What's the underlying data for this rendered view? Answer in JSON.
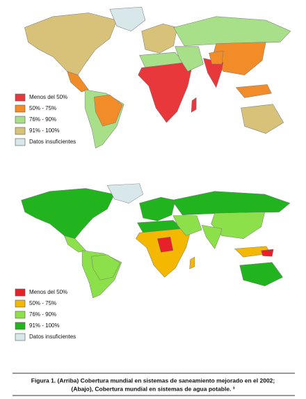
{
  "maps": [
    {
      "legend": [
        {
          "label": "Menos del 50%",
          "color": "#e8383c"
        },
        {
          "label": "50% - 75%",
          "color": "#f28c28"
        },
        {
          "label": "76% - 90%",
          "color": "#a8e08a"
        },
        {
          "label": "91% - 100%",
          "color": "#d8c27a"
        },
        {
          "label": "Datos insuficientes",
          "color": "#d8e8ea"
        }
      ]
    },
    {
      "legend": [
        {
          "label": "Menos del 50%",
          "color": "#e8202a"
        },
        {
          "label": "50% - 75%",
          "color": "#f5b800"
        },
        {
          "label": "76% - 90%",
          "color": "#8ce04a"
        },
        {
          "label": "91% - 100%",
          "color": "#22b41e"
        },
        {
          "label": "Datos insuficientes",
          "color": "#d8e8ea"
        }
      ]
    }
  ],
  "caption": {
    "line1": "Figura 1. (Arriba) Cobertura mundial en sistemas de saneamiento mejorado en el 2002;",
    "line2": "(Abajo), Cobertura mundial en sistemas de agua potable. ³"
  }
}
